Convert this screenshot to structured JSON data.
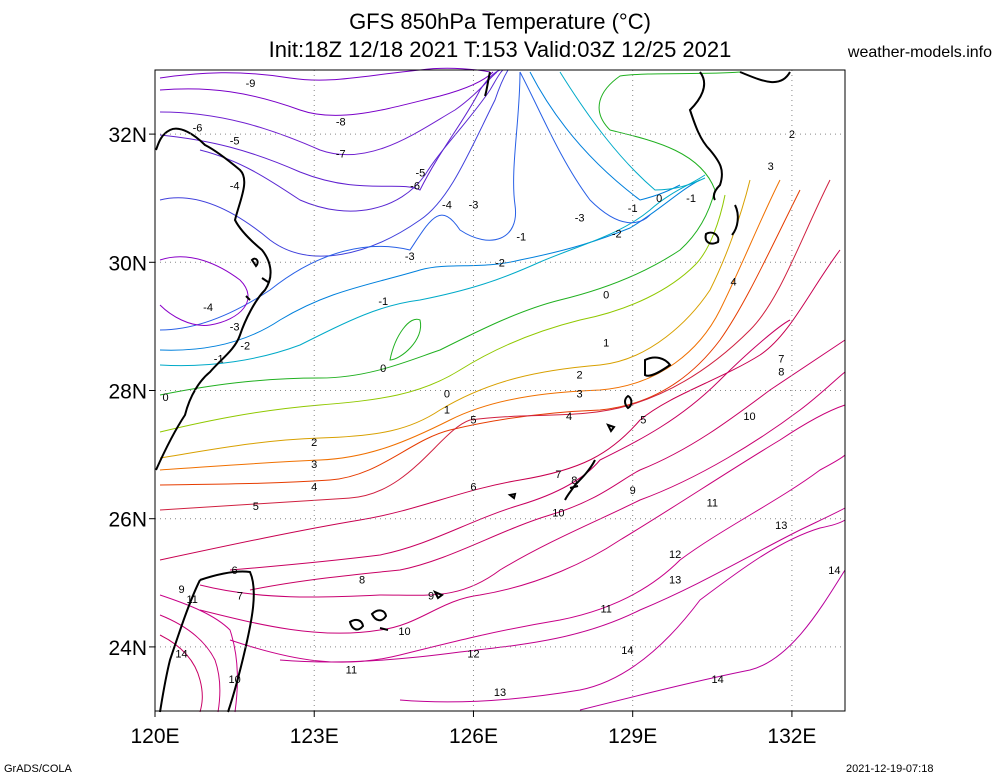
{
  "header": {
    "title": "GFS 850hPa Temperature (°C)",
    "subtitle": "Init:18Z 12/18 2021 T:153 Valid:03Z 12/25 2021",
    "source": "weather-models.info"
  },
  "footer": {
    "left": "GrADS/COLA",
    "right": "2021-12-19-07:18"
  },
  "map": {
    "lon_range": [
      120,
      133
    ],
    "lat_range": [
      23,
      33
    ],
    "x_ticks": [
      {
        "lon": 120,
        "label": "120E"
      },
      {
        "lon": 123,
        "label": "123E"
      },
      {
        "lon": 126,
        "label": "126E"
      },
      {
        "lon": 129,
        "label": "129E"
      },
      {
        "lon": 132,
        "label": "132E"
      }
    ],
    "y_ticks": [
      {
        "lat": 24,
        "label": "24N"
      },
      {
        "lat": 26,
        "label": "26N"
      },
      {
        "lat": 28,
        "label": "28N"
      },
      {
        "lat": 30,
        "label": "30N"
      },
      {
        "lat": 32,
        "label": "32N"
      }
    ],
    "grid": true,
    "contour_labels": [
      {
        "v": "-9",
        "lon": 121.8,
        "lat": 32.8
      },
      {
        "v": "-8",
        "lon": 123.5,
        "lat": 32.2
      },
      {
        "v": "-7",
        "lon": 123.5,
        "lat": 31.7
      },
      {
        "v": "-6",
        "lon": 120.8,
        "lat": 32.1
      },
      {
        "v": "-5",
        "lon": 121.5,
        "lat": 31.9
      },
      {
        "v": "-4",
        "lon": 121.5,
        "lat": 31.2
      },
      {
        "v": "-5",
        "lon": 125.0,
        "lat": 31.4
      },
      {
        "v": "-6",
        "lon": 124.9,
        "lat": 31.2
      },
      {
        "v": "-4",
        "lon": 125.5,
        "lat": 30.9
      },
      {
        "v": "-3",
        "lon": 126.0,
        "lat": 30.9
      },
      {
        "v": "-3",
        "lon": 124.8,
        "lat": 30.1
      },
      {
        "v": "-1",
        "lon": 126.9,
        "lat": 30.4
      },
      {
        "v": "-2",
        "lon": 126.5,
        "lat": 30.0
      },
      {
        "v": "-3",
        "lon": 128.0,
        "lat": 30.7
      },
      {
        "v": "-2",
        "lon": 128.7,
        "lat": 30.45
      },
      {
        "v": "-1",
        "lon": 129.0,
        "lat": 30.85
      },
      {
        "v": "0",
        "lon": 129.5,
        "lat": 31.0
      },
      {
        "v": "-1",
        "lon": 130.1,
        "lat": 31.0
      },
      {
        "v": "0",
        "lon": 128.5,
        "lat": 29.5
      },
      {
        "v": "-1",
        "lon": 124.3,
        "lat": 29.4
      },
      {
        "v": "-4",
        "lon": 121.0,
        "lat": 29.3
      },
      {
        "v": "-3",
        "lon": 121.5,
        "lat": 29.0
      },
      {
        "v": "-2",
        "lon": 121.7,
        "lat": 28.7
      },
      {
        "v": "-1",
        "lon": 121.2,
        "lat": 28.5
      },
      {
        "v": "0",
        "lon": 124.3,
        "lat": 28.35
      },
      {
        "v": "0",
        "lon": 125.5,
        "lat": 27.95
      },
      {
        "v": "0",
        "lon": 120.2,
        "lat": 27.9
      },
      {
        "v": "1",
        "lon": 125.5,
        "lat": 27.7
      },
      {
        "v": "1",
        "lon": 128.5,
        "lat": 28.75
      },
      {
        "v": "2",
        "lon": 128.0,
        "lat": 28.25
      },
      {
        "v": "3",
        "lon": 128.0,
        "lat": 27.95
      },
      {
        "v": "4",
        "lon": 127.8,
        "lat": 27.6
      },
      {
        "v": "5",
        "lon": 126.0,
        "lat": 27.55
      },
      {
        "v": "5",
        "lon": 129.2,
        "lat": 27.55
      },
      {
        "v": "2",
        "lon": 123.0,
        "lat": 27.2
      },
      {
        "v": "3",
        "lon": 123.0,
        "lat": 26.85
      },
      {
        "v": "4",
        "lon": 123.0,
        "lat": 26.5
      },
      {
        "v": "6",
        "lon": 126.0,
        "lat": 26.5
      },
      {
        "v": "5",
        "lon": 121.9,
        "lat": 26.2
      },
      {
        "v": "7",
        "lon": 127.6,
        "lat": 26.7
      },
      {
        "v": "8",
        "lon": 127.9,
        "lat": 26.6
      },
      {
        "v": "9",
        "lon": 129.0,
        "lat": 26.45
      },
      {
        "v": "10",
        "lon": 127.6,
        "lat": 26.1
      },
      {
        "v": "11",
        "lon": 130.5,
        "lat": 26.25
      },
      {
        "v": "12",
        "lon": 129.8,
        "lat": 25.45
      },
      {
        "v": "13",
        "lon": 131.8,
        "lat": 25.9
      },
      {
        "v": "13",
        "lon": 129.8,
        "lat": 25.05
      },
      {
        "v": "14",
        "lon": 132.8,
        "lat": 25.2
      },
      {
        "v": "8",
        "lon": 123.9,
        "lat": 25.05
      },
      {
        "v": "9",
        "lon": 125.2,
        "lat": 24.8
      },
      {
        "v": "10",
        "lon": 124.7,
        "lat": 24.25
      },
      {
        "v": "11",
        "lon": 128.5,
        "lat": 24.6
      },
      {
        "v": "14",
        "lon": 128.9,
        "lat": 23.95
      },
      {
        "v": "14",
        "lon": 130.6,
        "lat": 23.5
      },
      {
        "v": "12",
        "lon": 126.0,
        "lat": 23.9
      },
      {
        "v": "11",
        "lon": 123.7,
        "lat": 23.65
      },
      {
        "v": "13",
        "lon": 126.5,
        "lat": 23.3
      },
      {
        "v": "6",
        "lon": 121.5,
        "lat": 25.2
      },
      {
        "v": "7",
        "lon": 121.6,
        "lat": 24.8
      },
      {
        "v": "9",
        "lon": 120.5,
        "lat": 24.9
      },
      {
        "v": "11",
        "lon": 120.7,
        "lat": 24.75
      },
      {
        "v": "14",
        "lon": 120.5,
        "lat": 23.9
      },
      {
        "v": "10",
        "lon": 121.5,
        "lat": 23.5
      },
      {
        "v": "4",
        "lon": 130.9,
        "lat": 29.7
      },
      {
        "v": "7",
        "lon": 131.8,
        "lat": 28.5
      },
      {
        "v": "8",
        "lon": 131.8,
        "lat": 28.3
      },
      {
        "v": "10",
        "lon": 131.2,
        "lat": 27.6
      },
      {
        "v": "2",
        "lon": 132.0,
        "lat": 32.0
      },
      {
        "v": "3",
        "lon": 131.6,
        "lat": 31.5
      }
    ],
    "colors": {
      "minus9": "#7a00c8",
      "minus5": "#5a28d2",
      "minus3": "#2860e6",
      "minus1": "#00aac8",
      "zero": "#20b020",
      "plus1": "#90c800",
      "plus2": "#d8a000",
      "plus3": "#f07000",
      "plus4": "#e63c00",
      "plus5": "#d02040",
      "plus8": "#c80064",
      "plus11": "#c80088",
      "coast": "#000000"
    }
  }
}
